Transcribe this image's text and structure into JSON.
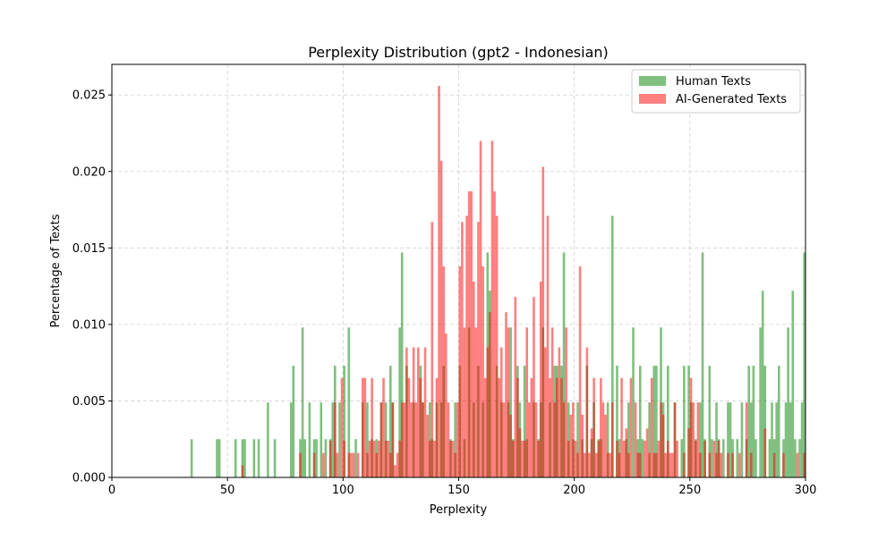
{
  "chart_data": {
    "type": "bar",
    "title": "Perplexity Distribution (gpt2 - Indonesian)",
    "xlabel": "Perplexity",
    "ylabel": "Percentage of Texts",
    "xlim": [
      0,
      300
    ],
    "ylim": [
      0,
      0.027
    ],
    "x_ticks": [
      0,
      50,
      100,
      150,
      200,
      250,
      300
    ],
    "y_ticks": [
      0.0,
      0.005,
      0.01,
      0.015,
      0.02,
      0.025
    ],
    "x_tick_labels": [
      "0",
      "50",
      "100",
      "150",
      "200",
      "250",
      "300"
    ],
    "y_tick_labels": [
      "0.000",
      "0.005",
      "0.010",
      "0.015",
      "0.020",
      "0.025"
    ],
    "grid": true,
    "legend_position": "top-right",
    "bin_width": 1,
    "series": [
      {
        "name": "Human Texts",
        "color": "#008000",
        "opacity": 0.5,
        "bins": [
          [
            34,
            0.0025
          ],
          [
            45,
            0.0025
          ],
          [
            46,
            0.0025
          ],
          [
            53,
            0.0025
          ],
          [
            56,
            0.0025
          ],
          [
            57,
            0.0025
          ],
          [
            61,
            0.0025
          ],
          [
            63,
            0.0025
          ],
          [
            67,
            0.0049
          ],
          [
            70,
            0.0025
          ],
          [
            77,
            0.0049
          ],
          [
            78,
            0.0073
          ],
          [
            81,
            0.0025
          ],
          [
            82,
            0.0098
          ],
          [
            83,
            0.0025
          ],
          [
            85,
            0.0049
          ],
          [
            87,
            0.0025
          ],
          [
            88,
            0.0025
          ],
          [
            90,
            0.0049
          ],
          [
            92,
            0.0025
          ],
          [
            94,
            0.0025
          ],
          [
            95,
            0.0049
          ],
          [
            96,
            0.0073
          ],
          [
            98,
            0.0049
          ],
          [
            100,
            0.0073
          ],
          [
            102,
            0.0098
          ],
          [
            105,
            0.0025
          ],
          [
            108,
            0.0049
          ],
          [
            110,
            0.0049
          ],
          [
            112,
            0.0025
          ],
          [
            114,
            0.0025
          ],
          [
            116,
            0.0049
          ],
          [
            118,
            0.0049
          ],
          [
            120,
            0.0073
          ],
          [
            121,
            0.0049
          ],
          [
            124,
            0.0098
          ],
          [
            125,
            0.0147
          ],
          [
            127,
            0.0073
          ],
          [
            130,
            0.0049
          ],
          [
            133,
            0.0073
          ],
          [
            134,
            0.0049
          ],
          [
            137,
            0.0049
          ],
          [
            138,
            0.0025
          ],
          [
            140,
            0.0049
          ],
          [
            142,
            0.0049
          ],
          [
            143,
            0.0073
          ],
          [
            146,
            0.0025
          ],
          [
            148,
            0.0049
          ],
          [
            150,
            0.0073
          ],
          [
            152,
            0.0025
          ],
          [
            154,
            0.0098
          ],
          [
            156,
            0.0049
          ],
          [
            158,
            0.0073
          ],
          [
            160,
            0.0049
          ],
          [
            162,
            0.0147
          ],
          [
            163,
            0.0122
          ],
          [
            166,
            0.0073
          ],
          [
            168,
            0.0049
          ],
          [
            171,
            0.0049
          ],
          [
            172,
            0.0098
          ],
          [
            173,
            0.0025
          ],
          [
            175,
            0.0073
          ],
          [
            176,
            0.0049
          ],
          [
            178,
            0.0073
          ],
          [
            179,
            0.0025
          ],
          [
            182,
            0.0049
          ],
          [
            184,
            0.0025
          ],
          [
            185,
            0.0049
          ],
          [
            186,
            0.0098
          ],
          [
            189,
            0.0049
          ],
          [
            191,
            0.0073
          ],
          [
            192,
            0.0073
          ],
          [
            194,
            0.0073
          ],
          [
            195,
            0.0147
          ],
          [
            197,
            0.0049
          ],
          [
            199,
            0.0025
          ],
          [
            201,
            0.0049
          ],
          [
            203,
            0.0025
          ],
          [
            205,
            0.0073
          ],
          [
            207,
            0.0025
          ],
          [
            208,
            0.0049
          ],
          [
            210,
            0.0025
          ],
          [
            211,
            0.0025
          ],
          [
            214,
            0.0049
          ],
          [
            216,
            0.0171
          ],
          [
            218,
            0.0073
          ],
          [
            219,
            0.0025
          ],
          [
            222,
            0.0025
          ],
          [
            223,
            0.0049
          ],
          [
            225,
            0.0098
          ],
          [
            227,
            0.0025
          ],
          [
            228,
            0.0073
          ],
          [
            229,
            0.0025
          ],
          [
            232,
            0.0049
          ],
          [
            234,
            0.0073
          ],
          [
            235,
            0.0073
          ],
          [
            237,
            0.0098
          ],
          [
            238,
            0.0049
          ],
          [
            240,
            0.0073
          ],
          [
            243,
            0.0049
          ],
          [
            246,
            0.0025
          ],
          [
            247,
            0.0073
          ],
          [
            249,
            0.0073
          ],
          [
            250,
            0.0049
          ],
          [
            252,
            0.0025
          ],
          [
            254,
            0.0049
          ],
          [
            255,
            0.0147
          ],
          [
            256,
            0.0025
          ],
          [
            258,
            0.0073
          ],
          [
            259,
            0.0025
          ],
          [
            261,
            0.0049
          ],
          [
            262,
            0.0025
          ],
          [
            264,
            0.0025
          ],
          [
            266,
            0.0049
          ],
          [
            267,
            0.0049
          ],
          [
            268,
            0.0025
          ],
          [
            270,
            0.0025
          ],
          [
            272,
            0.0049
          ],
          [
            274,
            0.0025
          ],
          [
            275,
            0.0073
          ],
          [
            276,
            0.0049
          ],
          [
            277,
            0.0073
          ],
          [
            278,
            0.0025
          ],
          [
            280,
            0.0098
          ],
          [
            281,
            0.0122
          ],
          [
            282,
            0.0073
          ],
          [
            284,
            0.0025
          ],
          [
            285,
            0.0049
          ],
          [
            286,
            0.0025
          ],
          [
            287,
            0.0049
          ],
          [
            288,
            0.0073
          ],
          [
            290,
            0.0025
          ],
          [
            291,
            0.0049
          ],
          [
            292,
            0.0098
          ],
          [
            293,
            0.0049
          ],
          [
            294,
            0.0122
          ],
          [
            295,
            0.0025
          ],
          [
            297,
            0.0025
          ],
          [
            298,
            0.0049
          ],
          [
            299,
            0.0147
          ]
        ]
      },
      {
        "name": "AI-Generated Texts",
        "color": "#ff0000",
        "opacity": 0.5,
        "bins": [
          [
            56,
            0.0008
          ],
          [
            81,
            0.0016
          ],
          [
            87,
            0.0016
          ],
          [
            91,
            0.0016
          ],
          [
            94,
            0.0024
          ],
          [
            96,
            0.0049
          ],
          [
            97,
            0.0016
          ],
          [
            99,
            0.0065
          ],
          [
            100,
            0.0024
          ],
          [
            102,
            0.0016
          ],
          [
            103,
            0.0016
          ],
          [
            104,
            0.0016
          ],
          [
            106,
            0.0016
          ],
          [
            108,
            0.0065
          ],
          [
            109,
            0.0065
          ],
          [
            110,
            0.0016
          ],
          [
            111,
            0.0024
          ],
          [
            112,
            0.0065
          ],
          [
            113,
            0.0024
          ],
          [
            114,
            0.0016
          ],
          [
            115,
            0.0024
          ],
          [
            116,
            0.0049
          ],
          [
            117,
            0.0065
          ],
          [
            118,
            0.0024
          ],
          [
            119,
            0.0024
          ],
          [
            120,
            0.0016
          ],
          [
            121,
            0.0049
          ],
          [
            122,
            0.0008
          ],
          [
            123,
            0.0016
          ],
          [
            124,
            0.0024
          ],
          [
            125,
            0.0049
          ],
          [
            126,
            0.0049
          ],
          [
            127,
            0.0085
          ],
          [
            128,
            0.0065
          ],
          [
            129,
            0.0049
          ],
          [
            130,
            0.0085
          ],
          [
            131,
            0.0049
          ],
          [
            132,
            0.0085
          ],
          [
            133,
            0.0065
          ],
          [
            134,
            0.0049
          ],
          [
            135,
            0.0085
          ],
          [
            136,
            0.0041
          ],
          [
            137,
            0.0024
          ],
          [
            138,
            0.0167
          ],
          [
            139,
            0.0024
          ],
          [
            140,
            0.0065
          ],
          [
            141,
            0.0256
          ],
          [
            142,
            0.0207
          ],
          [
            143,
            0.0138
          ],
          [
            144,
            0.0094
          ],
          [
            145,
            0.0049
          ],
          [
            146,
            0.0024
          ],
          [
            147,
            0.0024
          ],
          [
            148,
            0.0016
          ],
          [
            149,
            0.0049
          ],
          [
            150,
            0.0138
          ],
          [
            151,
            0.0167
          ],
          [
            152,
            0.0098
          ],
          [
            153,
            0.0171
          ],
          [
            154,
            0.0187
          ],
          [
            155,
            0.0187
          ],
          [
            156,
            0.0128
          ],
          [
            157,
            0.0098
          ],
          [
            158,
            0.0167
          ],
          [
            159,
            0.022
          ],
          [
            160,
            0.0138
          ],
          [
            161,
            0.0065
          ],
          [
            162,
            0.0085
          ],
          [
            163,
            0.0108
          ],
          [
            164,
            0.022
          ],
          [
            165,
            0.0187
          ],
          [
            166,
            0.0171
          ],
          [
            167,
            0.0065
          ],
          [
            168,
            0.0085
          ],
          [
            169,
            0.0049
          ],
          [
            170,
            0.0108
          ],
          [
            171,
            0.0098
          ],
          [
            172,
            0.0041
          ],
          [
            173,
            0.0024
          ],
          [
            174,
            0.0118
          ],
          [
            175,
            0.0065
          ],
          [
            176,
            0.0032
          ],
          [
            177,
            0.0024
          ],
          [
            178,
            0.0024
          ],
          [
            179,
            0.0098
          ],
          [
            180,
            0.0049
          ],
          [
            181,
            0.0065
          ],
          [
            182,
            0.0118
          ],
          [
            183,
            0.0049
          ],
          [
            184,
            0.0024
          ],
          [
            185,
            0.0128
          ],
          [
            186,
            0.0203
          ],
          [
            187,
            0.0085
          ],
          [
            188,
            0.0171
          ],
          [
            189,
            0.0065
          ],
          [
            190,
            0.0098
          ],
          [
            191,
            0.0049
          ],
          [
            192,
            0.0065
          ],
          [
            193,
            0.0085
          ],
          [
            194,
            0.0065
          ],
          [
            195,
            0.0049
          ],
          [
            196,
            0.0098
          ],
          [
            197,
            0.0024
          ],
          [
            198,
            0.0041
          ],
          [
            199,
            0.0049
          ],
          [
            200,
            0.0024
          ],
          [
            201,
            0.0016
          ],
          [
            202,
            0.0138
          ],
          [
            203,
            0.0041
          ],
          [
            204,
            0.0016
          ],
          [
            205,
            0.0085
          ],
          [
            206,
            0.0016
          ],
          [
            207,
            0.0032
          ],
          [
            208,
            0.0065
          ],
          [
            209,
            0.0016
          ],
          [
            210,
            0.0024
          ],
          [
            211,
            0.0065
          ],
          [
            212,
            0.0049
          ],
          [
            213,
            0.0041
          ],
          [
            214,
            0.0016
          ],
          [
            215,
            0.0016
          ],
          [
            216,
            0.0049
          ],
          [
            218,
            0.0024
          ],
          [
            219,
            0.0016
          ],
          [
            220,
            0.0065
          ],
          [
            221,
            0.0024
          ],
          [
            222,
            0.0032
          ],
          [
            223,
            0.0016
          ],
          [
            224,
            0.0065
          ],
          [
            226,
            0.0049
          ],
          [
            227,
            0.0016
          ],
          [
            228,
            0.0016
          ],
          [
            230,
            0.0024
          ],
          [
            231,
            0.0032
          ],
          [
            232,
            0.0016
          ],
          [
            233,
            0.0065
          ],
          [
            234,
            0.0016
          ],
          [
            235,
            0.0016
          ],
          [
            236,
            0.0024
          ],
          [
            237,
            0.0049
          ],
          [
            238,
            0.0041
          ],
          [
            239,
            0.0016
          ],
          [
            240,
            0.0024
          ],
          [
            241,
            0.0016
          ],
          [
            242,
            0.0016
          ],
          [
            243,
            0.0049
          ],
          [
            244,
            0.0024
          ],
          [
            247,
            0.0016
          ],
          [
            249,
            0.0032
          ],
          [
            250,
            0.0065
          ],
          [
            251,
            0.0049
          ],
          [
            252,
            0.0024
          ],
          [
            253,
            0.0049
          ],
          [
            254,
            0.0016
          ],
          [
            256,
            0.0024
          ],
          [
            258,
            0.0016
          ],
          [
            260,
            0.0024
          ],
          [
            261,
            0.0016
          ],
          [
            262,
            0.0024
          ],
          [
            263,
            0.0016
          ],
          [
            266,
            0.0016
          ],
          [
            268,
            0.0016
          ],
          [
            271,
            0.0016
          ],
          [
            274,
            0.0049
          ],
          [
            276,
            0.0016
          ],
          [
            282,
            0.0032
          ],
          [
            286,
            0.0016
          ],
          [
            290,
            0.0016
          ],
          [
            296,
            0.0016
          ],
          [
            299,
            0.0016
          ]
        ]
      }
    ]
  }
}
